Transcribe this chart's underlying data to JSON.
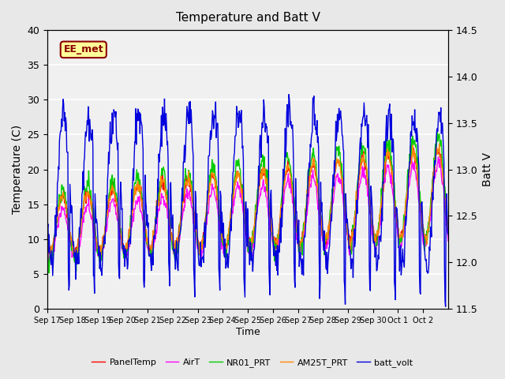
{
  "title": "Temperature and Batt V",
  "xlabel": "Time",
  "ylabel_left": "Temperature (C)",
  "ylabel_right": "Batt V",
  "annotation": "EE_met",
  "ylim_left": [
    0,
    40
  ],
  "ylim_right": [
    11.5,
    14.5
  ],
  "xtick_labels": [
    "Sep 17",
    "Sep 18",
    "Sep 19",
    "Sep 20",
    "Sep 21",
    "Sep 22",
    "Sep 23",
    "Sep 24",
    "Sep 25",
    "Sep 26",
    "Sep 27",
    "Sep 28",
    "Sep 29",
    "Sep 30",
    "Oct 1",
    "Oct 2"
  ],
  "colors": {
    "PanelTemp": "#ff0000",
    "AirT": "#ff00ff",
    "NR01_PRT": "#00cc00",
    "AM25T_PRT": "#ff8800",
    "batt_volt": "#0000dd"
  },
  "legend_labels": [
    "PanelTemp",
    "AirT",
    "NR01_PRT",
    "AM25T_PRT",
    "batt_volt"
  ],
  "background_color": "#e8e8e8",
  "plot_bg_color": "#f0f0f0",
  "grid_color": "#ffffff",
  "n_days": 16,
  "pts_per_day": 48
}
